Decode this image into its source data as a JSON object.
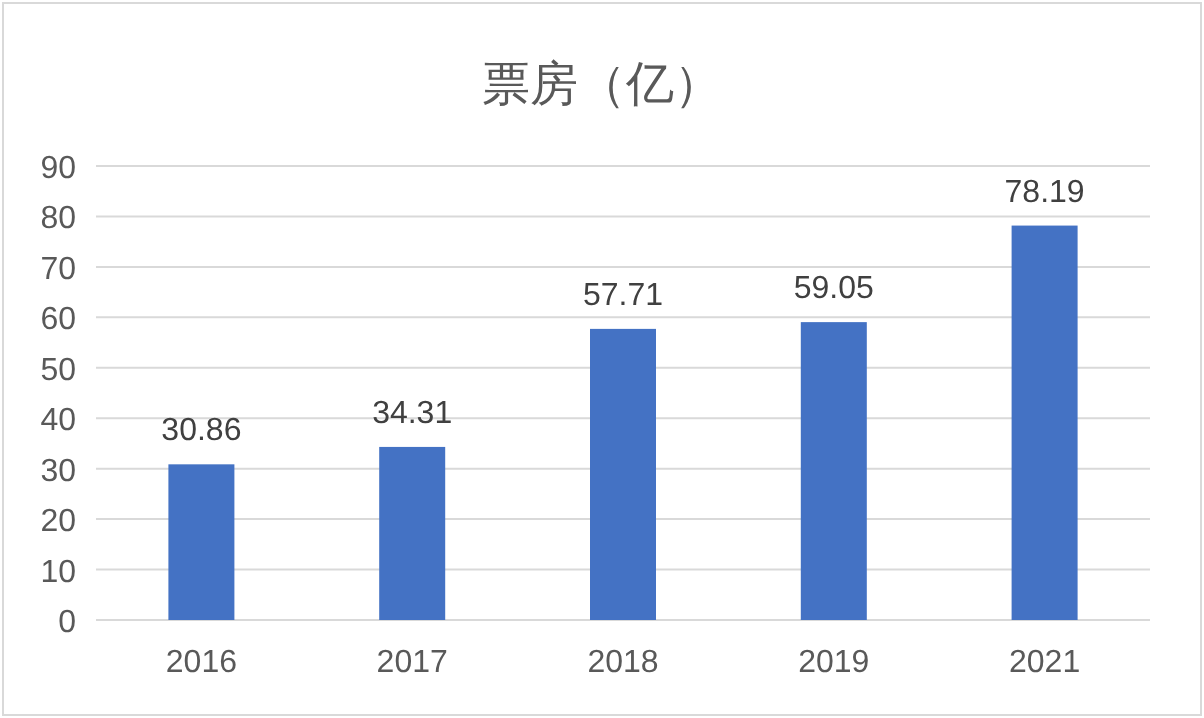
{
  "chart_data": {
    "type": "bar",
    "title": "票房（亿）",
    "categories": [
      "2016",
      "2017",
      "2018",
      "2019",
      "2021"
    ],
    "values": [
      30.86,
      34.31,
      57.71,
      59.05,
      78.19
    ],
    "color": "#4472c4",
    "ylim": [
      0,
      90
    ],
    "yticks": [
      0,
      10,
      20,
      30,
      40,
      50,
      60,
      70,
      80,
      90
    ],
    "grid": "y",
    "data_labels": true
  }
}
